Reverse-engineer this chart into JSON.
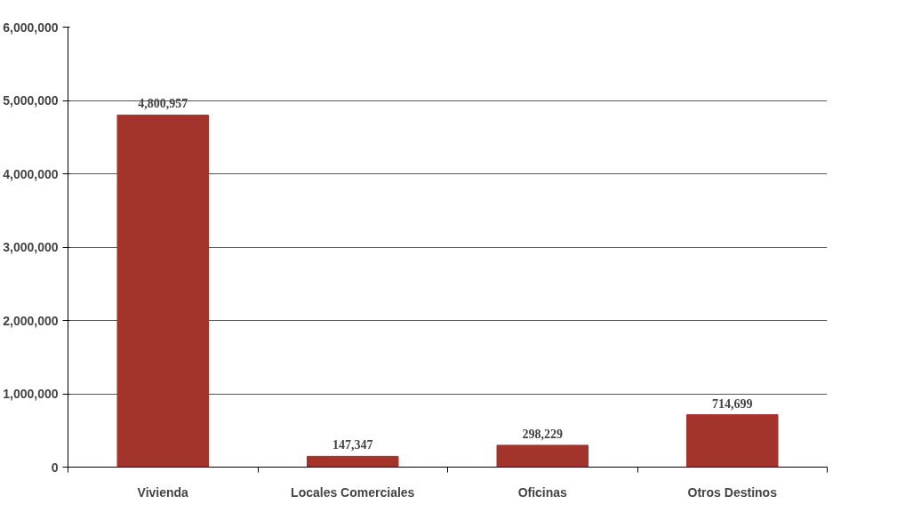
{
  "chart_data": {
    "type": "bar",
    "categories": [
      "Vivienda",
      "Locales Comerciales",
      "Oficinas",
      "Otros Destinos"
    ],
    "values": [
      4800957,
      147347,
      298229,
      714699
    ],
    "color": "#a3342b",
    "data_labels": true,
    "value_labels": [
      "4,800,957",
      "147,347",
      "298,229",
      "714,699"
    ],
    "ylim": [
      0,
      6000000
    ],
    "yticks": [
      {
        "value": 0,
        "label": "0"
      },
      {
        "value": 1000000,
        "label": "1,000,000"
      },
      {
        "value": 2000000,
        "label": "2,000,000"
      },
      {
        "value": 3000000,
        "label": "3,000,000"
      },
      {
        "value": 4000000,
        "label": "4,000,000"
      },
      {
        "value": 5000000,
        "label": "5,000,000"
      },
      {
        "value": 6000000,
        "label": "6,000,000"
      }
    ],
    "grid": "y"
  }
}
